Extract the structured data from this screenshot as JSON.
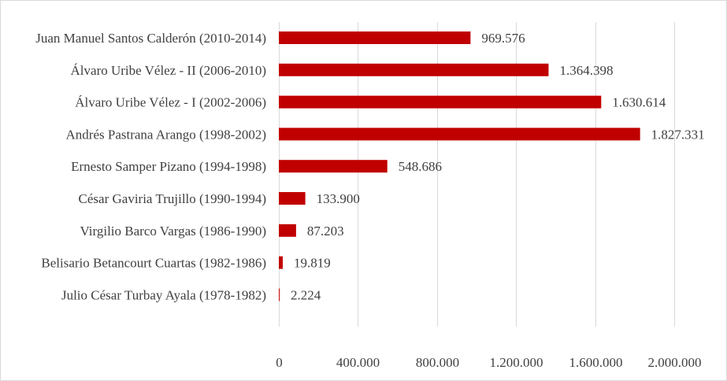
{
  "chart_data": {
    "type": "bar",
    "orientation": "horizontal",
    "title": "",
    "xlabel": "",
    "ylabel": "",
    "categories": [
      "Juan Manuel Santos Calderón (2010-2014)",
      "Álvaro Uribe Vélez - II (2006-2010)",
      "Álvaro Uribe Vélez - I (2002-2006)",
      "Andrés Pastrana Arango (1998-2002)",
      "Ernesto Samper Pizano (1994-1998)",
      "César Gaviria Trujillo (1990-1994)",
      "Virgilio Barco Vargas (1986-1990)",
      "Belisario Betancourt Cuartas (1982-1986)",
      "Julio César Turbay Ayala (1978-1982)"
    ],
    "values": [
      969576,
      1364398,
      1630614,
      1827331,
      548686,
      133900,
      87203,
      19819,
      2224
    ],
    "value_labels": [
      "969.576",
      "1.364.398",
      "1.630.614",
      "1.827.331",
      "548.686",
      "133.900",
      "87.203",
      "19.819",
      "2.224"
    ],
    "xlim": [
      0,
      2000000
    ],
    "ticks": [
      0,
      400000,
      800000,
      1200000,
      1600000,
      2000000
    ],
    "tick_labels": [
      "0",
      "400.000",
      "800.000",
      "1.200.000",
      "1.600.000",
      "2.000.000"
    ],
    "grid": true,
    "bar_color": "#c00000"
  }
}
